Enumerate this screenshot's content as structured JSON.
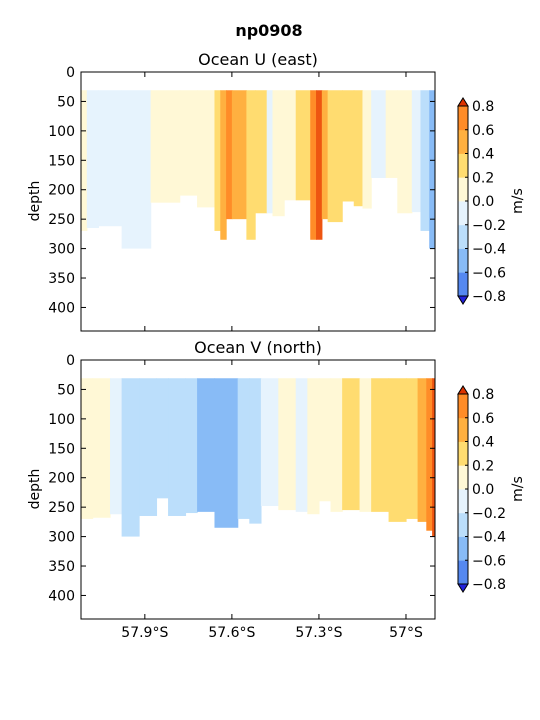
{
  "figure": {
    "suptitle": "np0908"
  },
  "colormap": {
    "levels": [
      -0.8,
      -0.6,
      -0.4,
      -0.2,
      0.0,
      0.2,
      0.4,
      0.6,
      0.8
    ],
    "colors": [
      "#3355ee",
      "#5588f0",
      "#88bbf6",
      "#bbdefb",
      "#e6f3fd",
      "#fff8d6",
      "#ffdc70",
      "#ffb040",
      "#ff8c28",
      "#ee5511"
    ],
    "under_color": "#2222dd",
    "over_color": "#dd3300"
  },
  "chart_data": [
    {
      "type": "heatmap",
      "title": "Ocean U (east)",
      "xlabel": "",
      "ylabel": "depth",
      "xlim": [
        -58.12,
        -56.9
      ],
      "ylim": [
        440,
        0
      ],
      "x_ticks": [
        -57.9,
        -57.6,
        -57.3,
        -57.0
      ],
      "x_tick_labels": [
        "57.9°S",
        "57.6°S",
        "57.3°S",
        "57°S"
      ],
      "y_ticks": [
        0,
        50,
        100,
        150,
        200,
        250,
        300,
        350,
        400
      ],
      "y_tick_labels": [
        "0",
        "50",
        "100",
        "150",
        "200",
        "250",
        "300",
        "350",
        "400"
      ],
      "colorbar": {
        "label": "m/s",
        "ticks": [
          0.8,
          0.6,
          0.4,
          0.2,
          0.0,
          -0.2,
          -0.4,
          -0.6,
          -0.8
        ],
        "tick_labels": [
          "0.8",
          "0.6",
          "0.4",
          "0.2",
          "0.0",
          "−0.2",
          "−0.4",
          "−0.6",
          "−0.8"
        ]
      },
      "top_depth": 31,
      "bands": [
        {
          "x0": -58.12,
          "x1": -58.1,
          "level": 5,
          "bottom": 270
        },
        {
          "x0": -58.1,
          "x1": -58.06,
          "level": 4,
          "bottom": 265
        },
        {
          "x0": -58.06,
          "x1": -57.98,
          "level": 4,
          "bottom": 262
        },
        {
          "x0": -57.98,
          "x1": -57.88,
          "level": 4,
          "bottom": 300
        },
        {
          "x0": -57.88,
          "x1": -57.78,
          "level": 5,
          "bottom": 222
        },
        {
          "x0": -57.78,
          "x1": -57.72,
          "level": 5,
          "bottom": 210
        },
        {
          "x0": -57.72,
          "x1": -57.66,
          "level": 5,
          "bottom": 230
        },
        {
          "x0": -57.66,
          "x1": -57.64,
          "level": 6,
          "bottom": 270
        },
        {
          "x0": -57.64,
          "x1": -57.62,
          "level": 7,
          "bottom": 285
        },
        {
          "x0": -57.62,
          "x1": -57.6,
          "level": 8,
          "bottom": 250
        },
        {
          "x0": -57.6,
          "x1": -57.55,
          "level": 7,
          "bottom": 250
        },
        {
          "x0": -57.55,
          "x1": -57.52,
          "level": 6,
          "bottom": 285
        },
        {
          "x0": -57.52,
          "x1": -57.48,
          "level": 6,
          "bottom": 240
        },
        {
          "x0": -57.48,
          "x1": -57.46,
          "level": 4,
          "bottom": 240
        },
        {
          "x0": -57.46,
          "x1": -57.42,
          "level": 5,
          "bottom": 245
        },
        {
          "x0": -57.42,
          "x1": -57.38,
          "level": 5,
          "bottom": 218
        },
        {
          "x0": -57.38,
          "x1": -57.33,
          "level": 6,
          "bottom": 218
        },
        {
          "x0": -57.33,
          "x1": -57.31,
          "level": 8,
          "bottom": 285
        },
        {
          "x0": -57.31,
          "x1": -57.29,
          "level": 9,
          "bottom": 285
        },
        {
          "x0": -57.29,
          "x1": -57.27,
          "level": 7,
          "bottom": 250
        },
        {
          "x0": -57.27,
          "x1": -57.22,
          "level": 6,
          "bottom": 255
        },
        {
          "x0": -57.22,
          "x1": -57.18,
          "level": 6,
          "bottom": 220
        },
        {
          "x0": -57.18,
          "x1": -57.15,
          "level": 6,
          "bottom": 228
        },
        {
          "x0": -57.15,
          "x1": -57.12,
          "level": 5,
          "bottom": 232
        },
        {
          "x0": -57.12,
          "x1": -57.07,
          "level": 4,
          "bottom": 180
        },
        {
          "x0": -57.07,
          "x1": -57.03,
          "level": 5,
          "bottom": 180
        },
        {
          "x0": -57.03,
          "x1": -56.98,
          "level": 5,
          "bottom": 240
        },
        {
          "x0": -56.98,
          "x1": -56.95,
          "level": 4,
          "bottom": 238
        },
        {
          "x0": -56.95,
          "x1": -56.92,
          "level": 3,
          "bottom": 270
        },
        {
          "x0": -56.92,
          "x1": -56.9,
          "level": 2,
          "bottom": 300
        }
      ]
    },
    {
      "type": "heatmap",
      "title": "Ocean V (north)",
      "xlabel": "",
      "ylabel": "depth",
      "xlim": [
        -58.12,
        -56.9
      ],
      "ylim": [
        440,
        0
      ],
      "x_ticks": [
        -57.9,
        -57.6,
        -57.3,
        -57.0
      ],
      "x_tick_labels": [
        "57.9°S",
        "57.6°S",
        "57.3°S",
        "57°S"
      ],
      "y_ticks": [
        0,
        50,
        100,
        150,
        200,
        250,
        300,
        350,
        400
      ],
      "y_tick_labels": [
        "0",
        "50",
        "100",
        "150",
        "200",
        "250",
        "300",
        "350",
        "400"
      ],
      "colorbar": {
        "label": "m/s",
        "ticks": [
          0.8,
          0.6,
          0.4,
          0.2,
          0.0,
          -0.2,
          -0.4,
          -0.6,
          -0.8
        ],
        "tick_labels": [
          "0.8",
          "0.6",
          "0.4",
          "0.2",
          "0.0",
          "−0.2",
          "−0.4",
          "−0.6",
          "−0.8"
        ]
      },
      "top_depth": 31,
      "bands": [
        {
          "x0": -58.12,
          "x1": -58.08,
          "level": 5,
          "bottom": 270
        },
        {
          "x0": -58.08,
          "x1": -58.02,
          "level": 5,
          "bottom": 268
        },
        {
          "x0": -58.02,
          "x1": -57.98,
          "level": 4,
          "bottom": 262
        },
        {
          "x0": -57.98,
          "x1": -57.92,
          "level": 3,
          "bottom": 300
        },
        {
          "x0": -57.92,
          "x1": -57.86,
          "level": 3,
          "bottom": 265
        },
        {
          "x0": -57.86,
          "x1": -57.82,
          "level": 3,
          "bottom": 235
        },
        {
          "x0": -57.82,
          "x1": -57.76,
          "level": 3,
          "bottom": 265
        },
        {
          "x0": -57.76,
          "x1": -57.72,
          "level": 3,
          "bottom": 260
        },
        {
          "x0": -57.72,
          "x1": -57.66,
          "level": 2,
          "bottom": 258
        },
        {
          "x0": -57.66,
          "x1": -57.58,
          "level": 2,
          "bottom": 285
        },
        {
          "x0": -57.58,
          "x1": -57.54,
          "level": 3,
          "bottom": 270
        },
        {
          "x0": -57.54,
          "x1": -57.5,
          "level": 3,
          "bottom": 278
        },
        {
          "x0": -57.5,
          "x1": -57.44,
          "level": 4,
          "bottom": 248
        },
        {
          "x0": -57.44,
          "x1": -57.38,
          "level": 5,
          "bottom": 255
        },
        {
          "x0": -57.38,
          "x1": -57.34,
          "level": 4,
          "bottom": 258
        },
        {
          "x0": -57.34,
          "x1": -57.3,
          "level": 5,
          "bottom": 262
        },
        {
          "x0": -57.3,
          "x1": -57.26,
          "level": 5,
          "bottom": 240
        },
        {
          "x0": -57.26,
          "x1": -57.22,
          "level": 5,
          "bottom": 258
        },
        {
          "x0": -57.22,
          "x1": -57.16,
          "level": 6,
          "bottom": 255
        },
        {
          "x0": -57.16,
          "x1": -57.12,
          "level": 5,
          "bottom": 258
        },
        {
          "x0": -57.12,
          "x1": -57.06,
          "level": 6,
          "bottom": 258
        },
        {
          "x0": -57.06,
          "x1": -57.0,
          "level": 6,
          "bottom": 275
        },
        {
          "x0": -57.0,
          "x1": -56.96,
          "level": 6,
          "bottom": 270
        },
        {
          "x0": -56.96,
          "x1": -56.93,
          "level": 7,
          "bottom": 275
        },
        {
          "x0": -56.93,
          "x1": -56.91,
          "level": 8,
          "bottom": 290
        },
        {
          "x0": -56.91,
          "x1": -56.9,
          "level": 9,
          "bottom": 300
        }
      ]
    }
  ]
}
